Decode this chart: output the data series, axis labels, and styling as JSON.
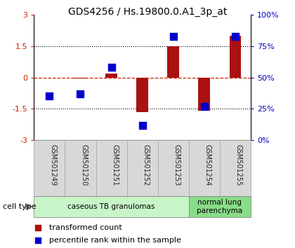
{
  "title": "GDS4256 / Hs.19800.0.A1_3p_at",
  "samples": [
    "GSM501249",
    "GSM501250",
    "GSM501251",
    "GSM501252",
    "GSM501253",
    "GSM501254",
    "GSM501255"
  ],
  "transformed_count": [
    0.0,
    -0.05,
    0.2,
    -1.65,
    1.5,
    -1.6,
    2.0
  ],
  "percentile_rank": [
    35,
    37,
    58,
    12,
    83,
    27,
    83
  ],
  "ylim_left": [
    -3,
    3
  ],
  "ylim_right": [
    0,
    100
  ],
  "yticks_left": [
    -3,
    -1.5,
    0,
    1.5,
    3
  ],
  "yticks_right": [
    0,
    25,
    50,
    75,
    100
  ],
  "hlines_dotted": [
    -1.5,
    1.5
  ],
  "hline_dashed": 0,
  "bar_color": "#aa1111",
  "dot_color": "#0000cc",
  "bar_width": 0.38,
  "dot_size": 55,
  "background_color": "#ffffff",
  "left_tick_color": "#cc2200",
  "right_tick_color": "#0000bb",
  "cell_type_groups": [
    {
      "label": "caseous TB granulomas",
      "start": 0,
      "end": 4,
      "color": "#c8f5c8"
    },
    {
      "label": "normal lung\nparenchyma",
      "start": 5,
      "end": 6,
      "color": "#88dd88"
    }
  ],
  "legend_items": [
    {
      "color": "#aa1111",
      "label": "transformed count"
    },
    {
      "color": "#0000cc",
      "label": "percentile rank within the sample"
    }
  ],
  "cell_type_label": "cell type",
  "label_box_color": "#d8d8d8",
  "label_box_edge": "#aaaaaa"
}
